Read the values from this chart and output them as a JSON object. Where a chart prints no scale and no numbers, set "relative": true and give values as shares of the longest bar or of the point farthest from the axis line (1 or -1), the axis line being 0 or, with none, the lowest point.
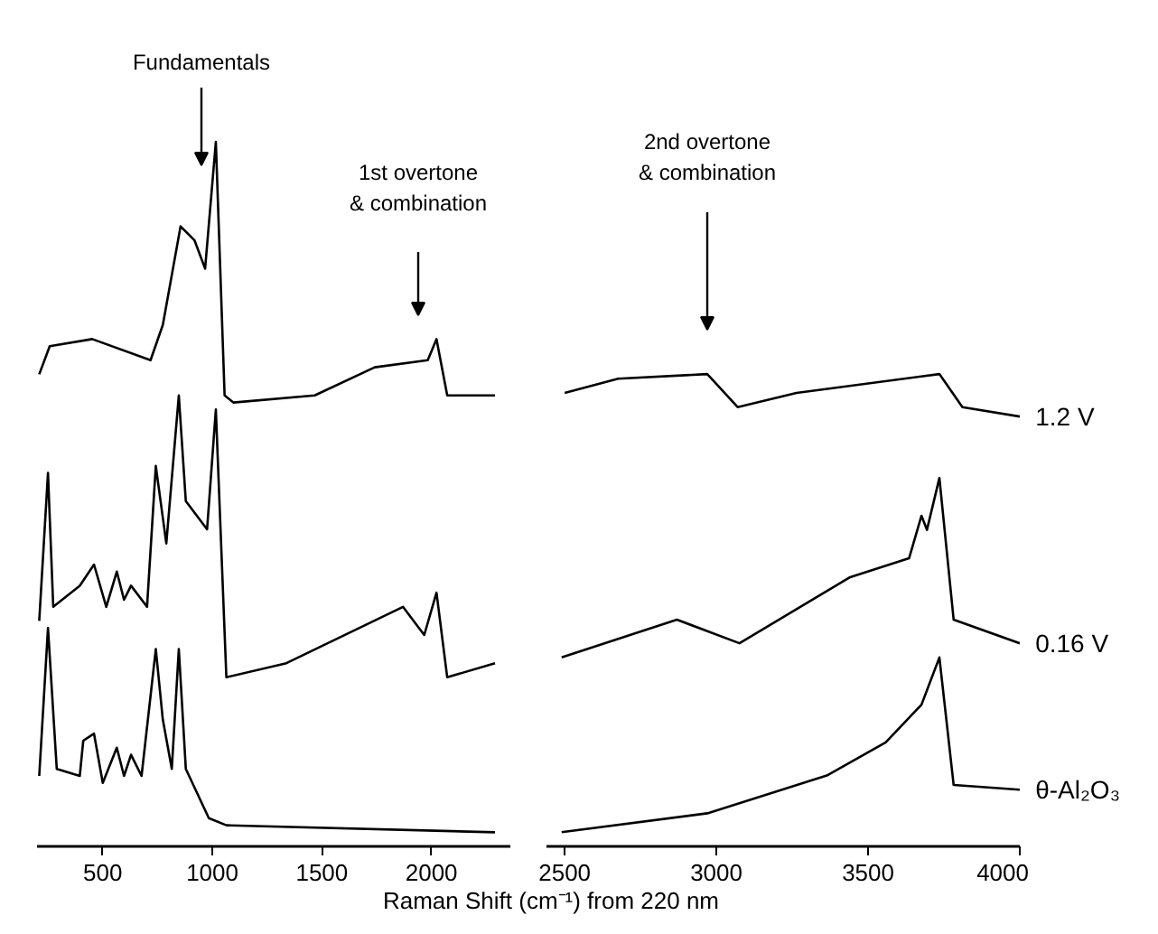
{
  "chart_data": [
    {
      "type": "line",
      "relative": true,
      "xlabel": "Raman Shift (cm⁻¹) from 220 nm",
      "xlim": [
        200,
        2360
      ],
      "xticks": [
        500,
        1000,
        1500,
        2000
      ],
      "annotations": [
        "Fundamentals",
        "1st overtone\n& combination"
      ],
      "series": [
        {
          "color": "#000000",
          "x": [
            210,
            258,
            452,
            718,
            774,
            855,
            919,
            967,
            1016,
            1056,
            1096,
            1467,
            1741,
            1983,
            2023,
            2072,
            2290
          ],
          "values": [
            0.67,
            0.71,
            0.72,
            0.69,
            0.74,
            0.88,
            0.86,
            0.82,
            1.0,
            0.64,
            0.63,
            0.64,
            0.68,
            0.69,
            0.72,
            0.64,
            0.64
          ]
        },
        {
          "color": "#000000",
          "x": [
            210,
            250,
            274,
            395,
            460,
            516,
            564,
            597,
            629,
            702,
            742,
            790,
            847,
            879,
            976,
            1016,
            1064,
            1338,
            1870,
            1967,
            2023,
            2072,
            2290
          ],
          "values": [
            0.32,
            0.53,
            0.34,
            0.37,
            0.4,
            0.34,
            0.39,
            0.35,
            0.37,
            0.34,
            0.54,
            0.43,
            0.64,
            0.49,
            0.45,
            0.62,
            0.24,
            0.26,
            0.34,
            0.3,
            0.36,
            0.24,
            0.26
          ]
        },
        {
          "color": "#000000",
          "x": [
            210,
            250,
            290,
            395,
            411,
            460,
            500,
            564,
            597,
            629,
            677,
            742,
            774,
            815,
            847,
            879,
            984,
            1064,
            2290
          ],
          "values": [
            0.1,
            0.31,
            0.11,
            0.1,
            0.15,
            0.16,
            0.09,
            0.14,
            0.1,
            0.13,
            0.1,
            0.28,
            0.18,
            0.11,
            0.28,
            0.11,
            0.04,
            0.03,
            0.02
          ]
        }
      ]
    },
    {
      "type": "line",
      "relative": true,
      "xlim": [
        2440,
        4000
      ],
      "xticks": [
        2500,
        3000,
        3500,
        4000
      ],
      "annotations": [
        "2nd overtone\n& combination"
      ],
      "series": [
        {
          "name": "1.2 V",
          "color": "#000000",
          "x": [
            2500,
            2676,
            2970,
            3070,
            3264,
            3735,
            3811,
            4000
          ],
          "values": [
            0.96,
            0.99,
            1.0,
            0.93,
            0.96,
            1.0,
            0.93,
            0.91
          ]
        },
        {
          "name": "0.16 V",
          "color": "#000000",
          "x": [
            2490,
            2870,
            3076,
            3441,
            3635,
            3676,
            3694,
            3735,
            3782,
            4000
          ],
          "values": [
            0.4,
            0.48,
            0.43,
            0.57,
            0.61,
            0.7,
            0.67,
            0.78,
            0.48,
            0.43
          ]
        },
        {
          "name": "θ-Al₂O₃",
          "color": "#000000",
          "x": [
            2490,
            2970,
            3364,
            3558,
            3676,
            3735,
            3782,
            4000
          ],
          "values": [
            0.03,
            0.07,
            0.15,
            0.22,
            0.3,
            0.4,
            0.13,
            0.12
          ]
        }
      ]
    }
  ]
}
